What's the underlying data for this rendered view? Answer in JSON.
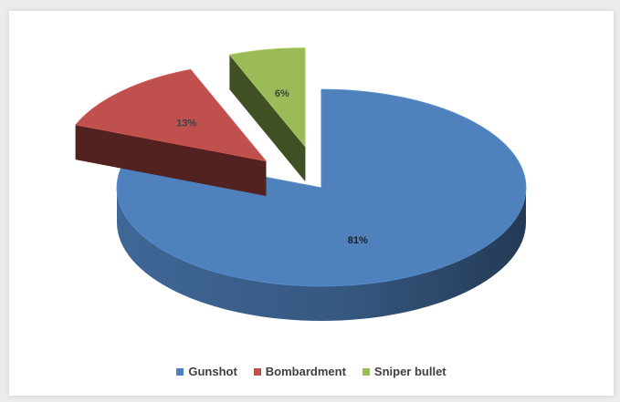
{
  "chart_data": {
    "type": "pie",
    "style": "3d-exploded",
    "categories": [
      "Gunshot",
      "Bombardment",
      "Sniper bullet"
    ],
    "values": [
      81,
      13,
      6
    ],
    "data_labels": [
      "81%",
      "13%",
      "6%"
    ],
    "colors": [
      "#4f81bd",
      "#c0504d",
      "#9bbb59"
    ],
    "label_colors": [
      "#1f1f1f",
      "#404040",
      "#404040"
    ],
    "legend_position": "bottom",
    "title": ""
  }
}
